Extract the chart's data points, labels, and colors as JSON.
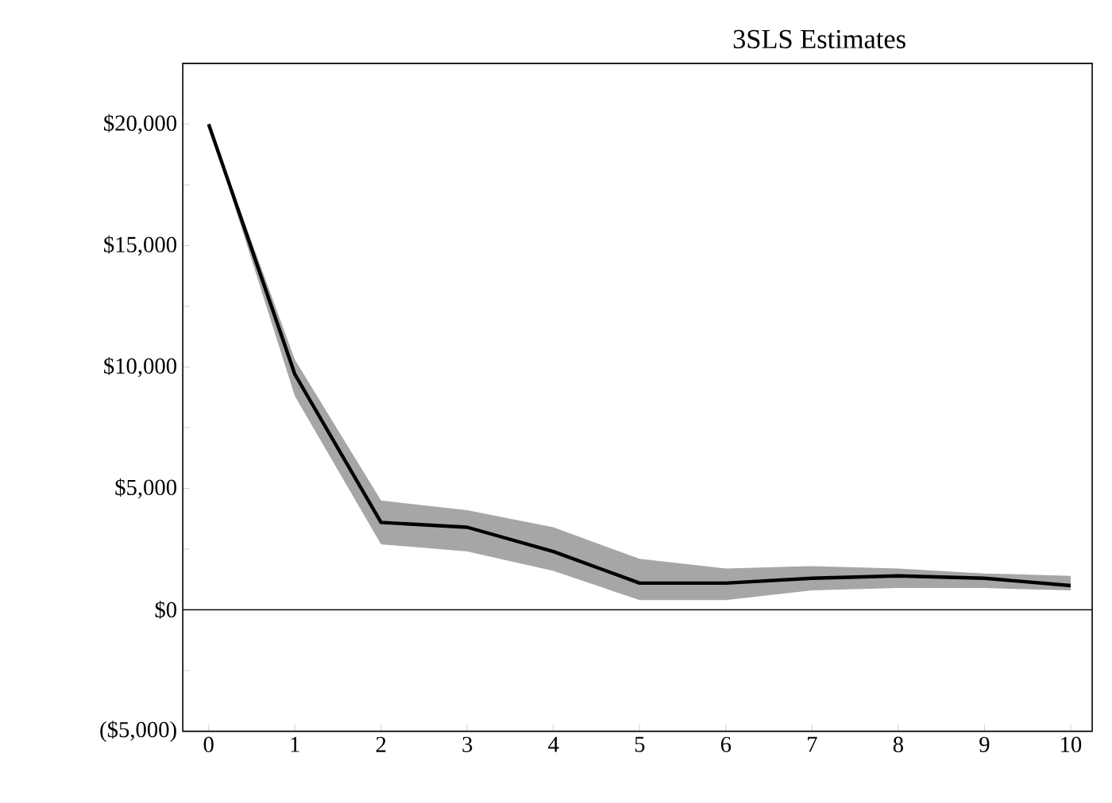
{
  "chart_data": {
    "type": "line",
    "title": "3SLS Estimates",
    "x": [
      0,
      1,
      2,
      3,
      4,
      5,
      6,
      7,
      8,
      9,
      10
    ],
    "series": [
      {
        "color": "#000000",
        "values": [
          20000,
          9700,
          3600,
          3400,
          2400,
          1100,
          1100,
          1300,
          1400,
          1300,
          1000
        ],
        "lower": [
          20000,
          8800,
          2700,
          2400,
          1600,
          400,
          400,
          800,
          900,
          900,
          800
        ],
        "upper": [
          20000,
          10300,
          4500,
          4100,
          3400,
          2100,
          1700,
          1800,
          1700,
          1500,
          1400
        ]
      }
    ],
    "xlim": [
      -0.3,
      10.25
    ],
    "ylim": [
      -5000,
      22500
    ],
    "xticks": [
      0,
      1,
      2,
      3,
      4,
      5,
      6,
      7,
      8,
      9,
      10
    ],
    "yticks": [
      {
        "value": -5000,
        "label": "($5,000)"
      },
      {
        "value": -2500,
        "label": null
      },
      {
        "value": 0,
        "label": "$0"
      },
      {
        "value": 2500,
        "label": null
      },
      {
        "value": 5000,
        "label": "$5,000"
      },
      {
        "value": 7500,
        "label": null
      },
      {
        "value": 10000,
        "label": "$10,000"
      },
      {
        "value": 12500,
        "label": null
      },
      {
        "value": 15000,
        "label": "$15,000"
      },
      {
        "value": 17500,
        "label": null
      },
      {
        "value": 20000,
        "label": "$20,000"
      }
    ],
    "ref_lines": [
      {
        "axis": "y",
        "value": 0
      }
    ],
    "marker": "none",
    "line_style": "solid"
  }
}
